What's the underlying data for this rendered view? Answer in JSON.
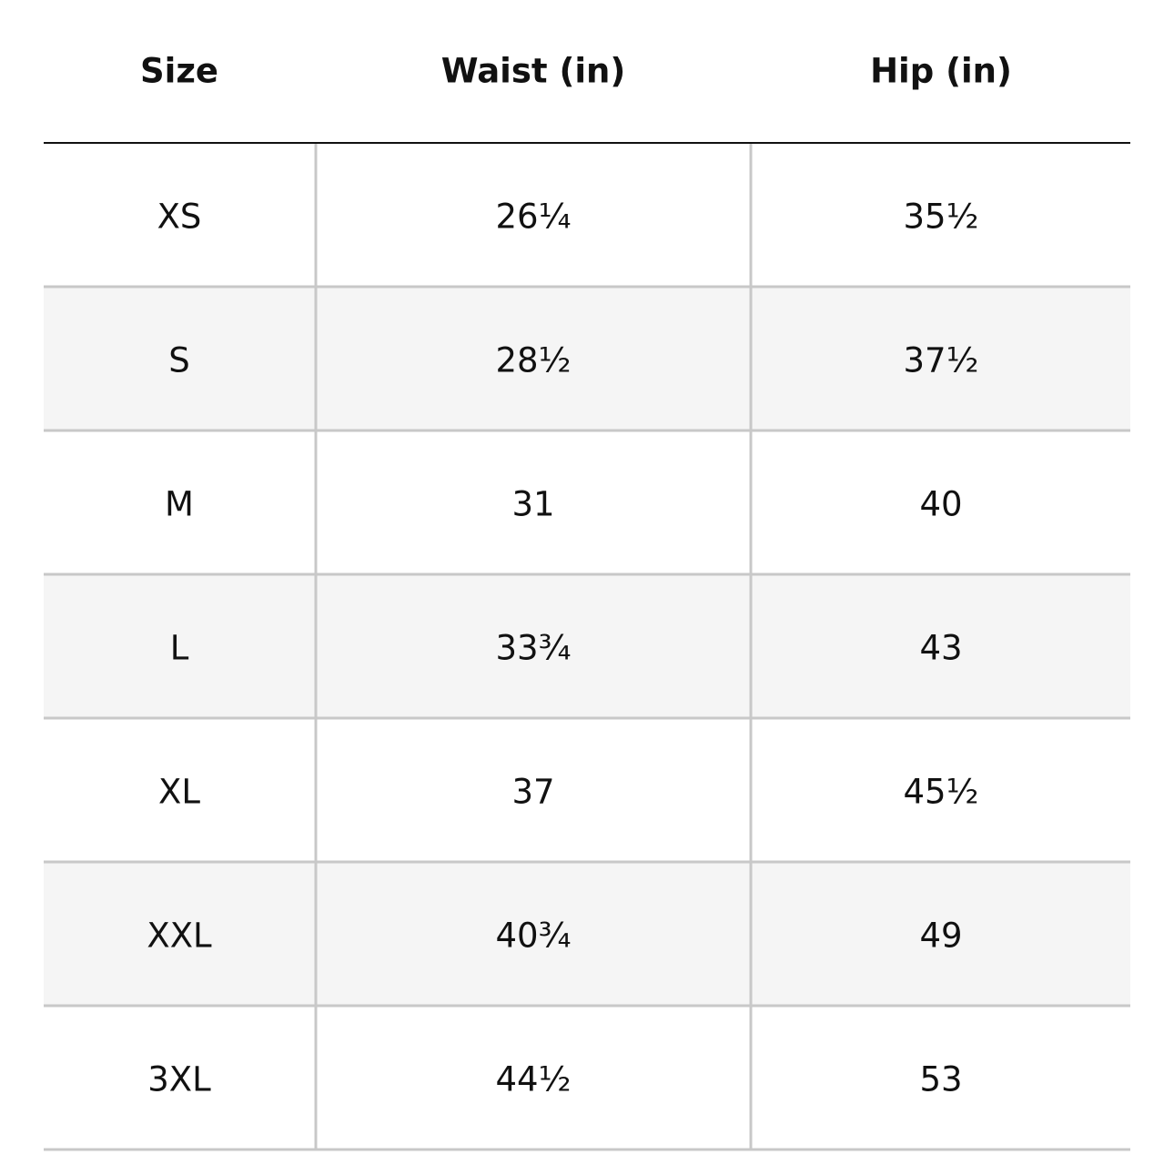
{
  "table": {
    "header": [
      "Size",
      "Waist (in)",
      "Hip (in)"
    ],
    "rows": [
      [
        "XS",
        "26¼",
        "35½"
      ],
      [
        "S",
        "28½",
        "37½"
      ],
      [
        "M",
        "31",
        "40"
      ],
      [
        "L",
        "33¾",
        "43"
      ],
      [
        "XL",
        "37",
        "45½"
      ],
      [
        "XXL",
        "40¾",
        "49"
      ],
      [
        "3XL",
        "44½",
        "53"
      ]
    ]
  }
}
